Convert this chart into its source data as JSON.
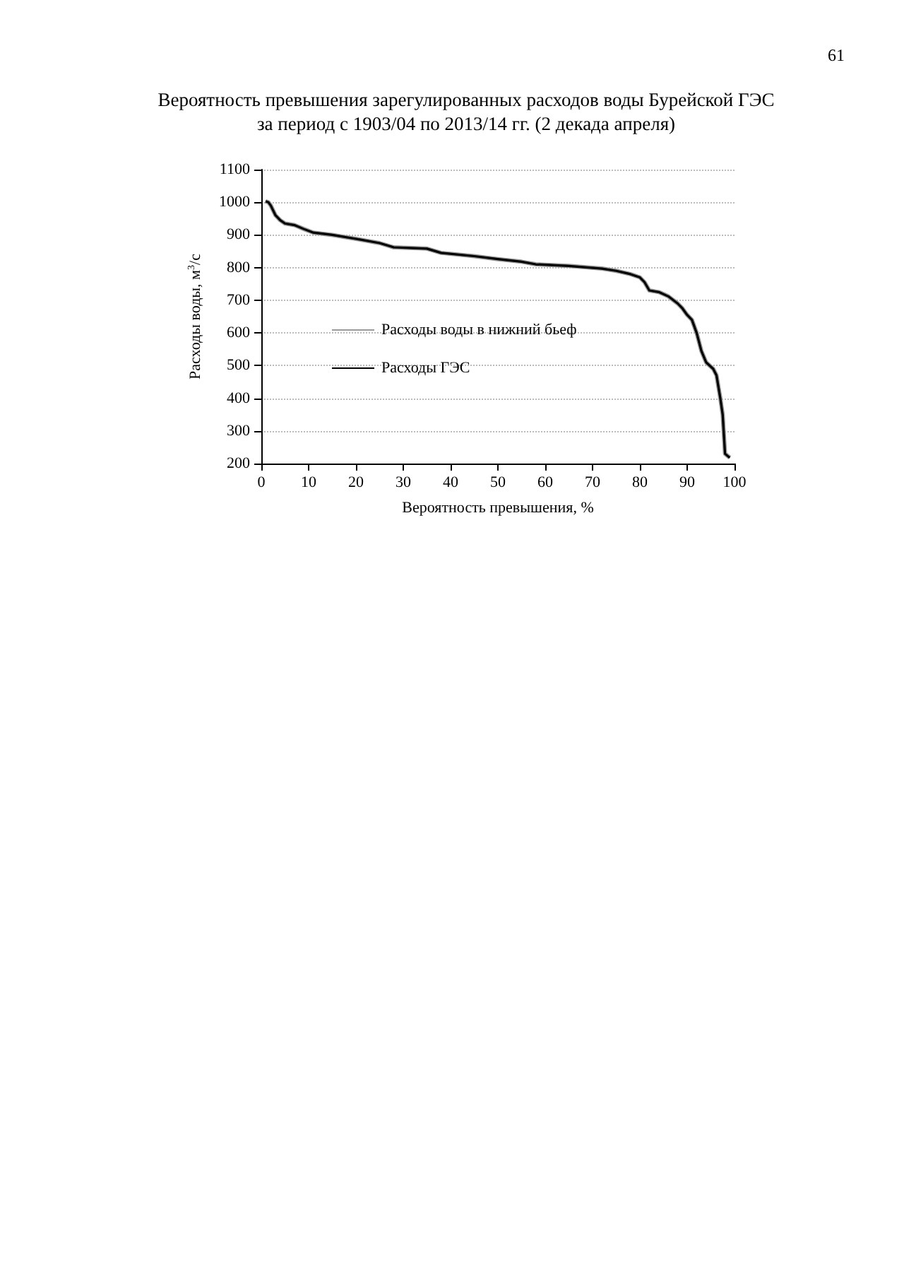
{
  "chart_data": {
    "type": "line",
    "title": "Вероятность превышения зарегулированных расходов воды Бурейской ГЭС\nза период с 1903/04 по 2013/14 гг. (2 декада апреля)",
    "xlabel": "Вероятность превышения, %",
    "ylabel": "Расходы воды, м$^{3}$/с",
    "annotations": [
      "61"
    ],
    "x": [
      0.9,
      1.5,
      2,
      3,
      4,
      5,
      7,
      9,
      11,
      15,
      20,
      25,
      28,
      35,
      38,
      45,
      50,
      55,
      58,
      65,
      72,
      75,
      78,
      80,
      81,
      82,
      84,
      86,
      88,
      89,
      90,
      91,
      92,
      93,
      94,
      95.5,
      96.2,
      97,
      97.5,
      98,
      99
    ],
    "series": [
      {
        "name": "Расходы воды в нижний бьеф",
        "color": "#9a9a9a",
        "values": [
          1003,
          1000,
          990,
          960,
          945,
          935,
          930,
          918,
          907,
          900,
          888,
          875,
          862,
          858,
          845,
          835,
          826,
          818,
          810,
          805,
          797,
          790,
          780,
          770,
          755,
          730,
          725,
          712,
          690,
          675,
          655,
          640,
          600,
          545,
          510,
          490,
          470,
          400,
          350,
          230,
          218
        ]
      },
      {
        "name": "Расходы ГЭС",
        "color": "#000000",
        "values": [
          1003,
          1000,
          990,
          960,
          945,
          935,
          930,
          918,
          907,
          900,
          888,
          875,
          862,
          858,
          845,
          835,
          826,
          818,
          810,
          805,
          797,
          790,
          780,
          770,
          755,
          730,
          725,
          712,
          690,
          675,
          655,
          640,
          600,
          545,
          510,
          490,
          470,
          400,
          350,
          230,
          218
        ]
      }
    ],
    "xlim": [
      0,
      100
    ],
    "xticks": [
      0,
      10,
      20,
      30,
      40,
      50,
      60,
      70,
      80,
      90,
      100
    ],
    "ylim": [
      200,
      1100
    ],
    "yticks": [
      200,
      300,
      400,
      500,
      600,
      700,
      800,
      900,
      1000,
      1100
    ],
    "grid": "y",
    "legend": "left",
    "marker": "none",
    "line_style": "solid"
  }
}
